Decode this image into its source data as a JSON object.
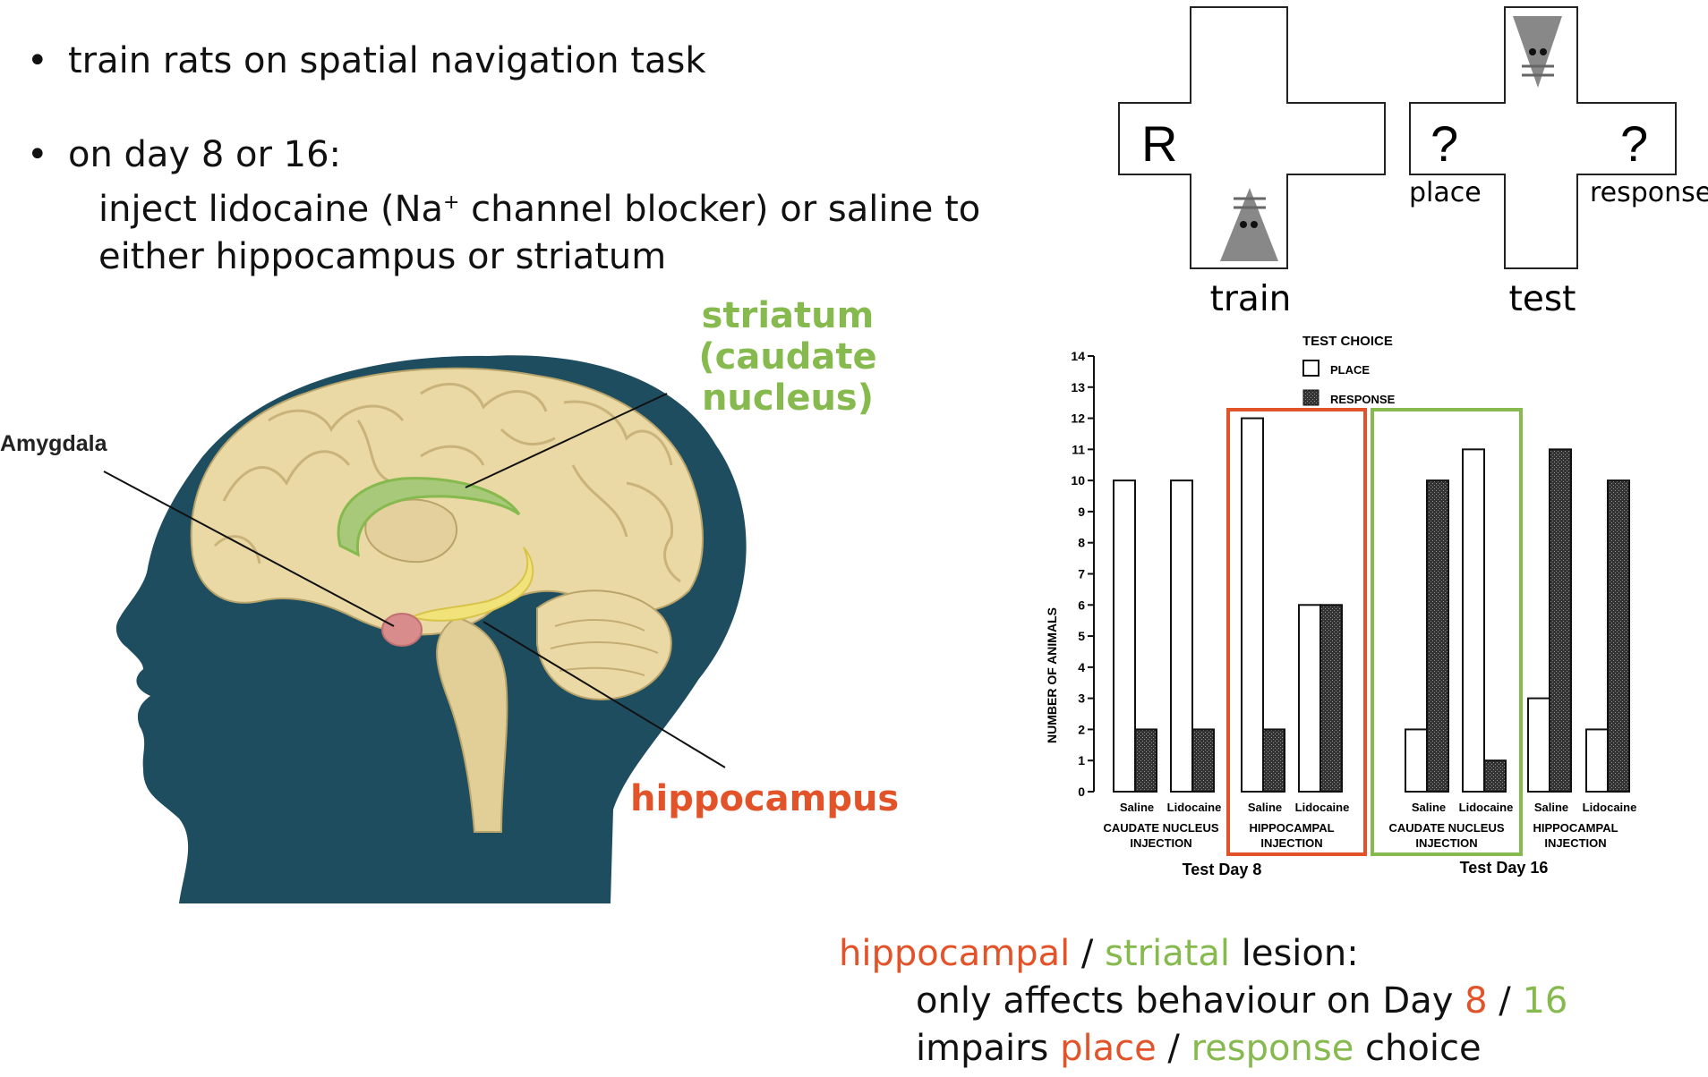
{
  "bullets": {
    "b1": "train rats on spatial navigation task",
    "b2": "on day 8 or 16:",
    "b2_line1_pre": "inject lidocaine (Na",
    "b2_sup": "+",
    "b2_line1_post": " channel blocker) or saline to",
    "b2_line2": "either hippocampus or striatum"
  },
  "brain": {
    "striatum_title": "striatum",
    "striatum_sub": "(caudate nucleus)",
    "amygdala": "Amygdala",
    "hippocampus": "hippocampus"
  },
  "maze": {
    "reward": "R",
    "q_place": "?",
    "q_response": "?",
    "place": "place",
    "response": "response",
    "train": "train",
    "test": "test"
  },
  "colors": {
    "hippocampus_red": "#e3532a",
    "striatum_green": "#86b94e",
    "head": "#1f4d60",
    "brain": "#ead9a5"
  },
  "chart_data": {
    "type": "bar",
    "ylabel": "NUMBER OF ANIMALS",
    "ylim": [
      0,
      14
    ],
    "yticks": [
      "0",
      "1",
      "2",
      "3",
      "4",
      "5",
      "6",
      "7",
      "8",
      "9",
      "10",
      "11",
      "12",
      "13",
      "14"
    ],
    "legend_title": "TEST CHOICE",
    "legend": [
      "PLACE",
      "RESPONSE"
    ],
    "series": [
      {
        "name": "PLACE",
        "values": [
          10,
          10,
          12,
          6,
          2,
          11,
          3,
          2
        ]
      },
      {
        "name": "RESPONSE",
        "values": [
          2,
          2,
          2,
          6,
          10,
          1,
          11,
          10
        ]
      }
    ],
    "categories": [
      "Saline",
      "Lidocaine",
      "Saline",
      "Lidocaine",
      "Saline",
      "Lidocaine",
      "Saline",
      "Lidocaine"
    ],
    "group_labels": [
      "CAUDATE NUCLEUS",
      "INJECTION",
      "HIPPOCAMPAL",
      "INJECTION",
      "CAUDATE NUCLEUS",
      "INJECTION",
      "HIPPOCAMPAL",
      "INJECTION"
    ],
    "day_labels": [
      "Test Day 8",
      "Test Day 16"
    ],
    "legend_position": "top-center"
  },
  "summary": {
    "hippocampal": "hippocampal",
    "slash1": " / ",
    "striatal": "striatal",
    "lesion": " lesion:",
    "line2_pre": "only affects behaviour on Day ",
    "day8": "8",
    "slash2": " / ",
    "day16": "16",
    "line3_pre": "impairs ",
    "place": "place",
    "slash3": " / ",
    "response": "response",
    "choice": " choice"
  }
}
